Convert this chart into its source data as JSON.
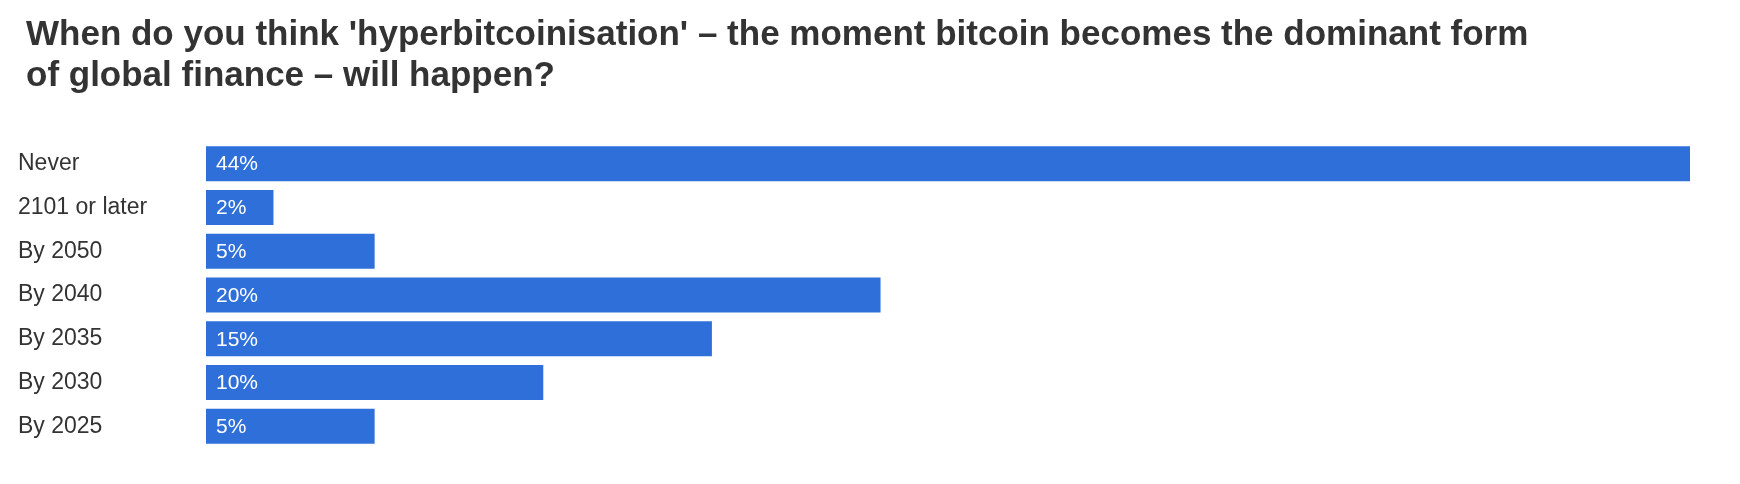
{
  "chart_data": {
    "type": "bar",
    "orientation": "horizontal",
    "title": "When do you think 'hyperbitcoinisation' – the moment bitcoin becomes the dominant form of global finance – will happen?",
    "categories": [
      "Never",
      "2101 or later",
      "By 2050",
      "By 2040",
      "By 2035",
      "By 2030",
      "By 2025"
    ],
    "values": [
      44,
      2,
      5,
      20,
      15,
      10,
      5
    ],
    "value_labels": [
      "44%",
      "2%",
      "5%",
      "20%",
      "15%",
      "10%",
      "5%"
    ],
    "color": "#2f6fd9",
    "grid": false,
    "legend": false
  }
}
